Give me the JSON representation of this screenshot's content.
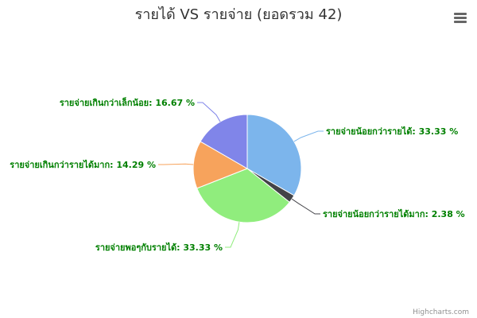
{
  "chart_data": {
    "type": "pie",
    "title": "รายได้ VS รายจ่าย (ยอดรวม 42)",
    "series": [
      {
        "values": [
          33.33,
          2.38,
          33.33,
          14.29,
          16.67
        ],
        "categories": [
          "รายจ่ายน้อยกว่ารายได้",
          "รายจ่ายน้อยกว่ารายได้มาก",
          "รายจ่ายพอๆกับรายได้",
          "รายจ่ายเกินกว่ารายได้มาก",
          "รายจ่ายเกินกว่าเล็กน้อย"
        ],
        "labels": [
          "รายจ่ายน้อยกว่ารายได้: 33.33 %",
          "รายจ่ายน้อยกว่ารายได้มาก: 2.38 %",
          "รายจ่ายพอๆกับรายได้: 33.33 %",
          "รายจ่ายเกินกว่ารายได้มาก: 14.29 %",
          "รายจ่ายเกินกว่าเล็กน้อย: 16.67 %"
        ],
        "colors": [
          "#7cb5ec",
          "#434348",
          "#90ed7d",
          "#f7a35c",
          "#8085e9"
        ]
      }
    ],
    "label_color": "#008000",
    "start_angle": "top",
    "legend": "none"
  },
  "credits": "Highcharts.com",
  "menu_icon": "hamburger-menu-icon"
}
